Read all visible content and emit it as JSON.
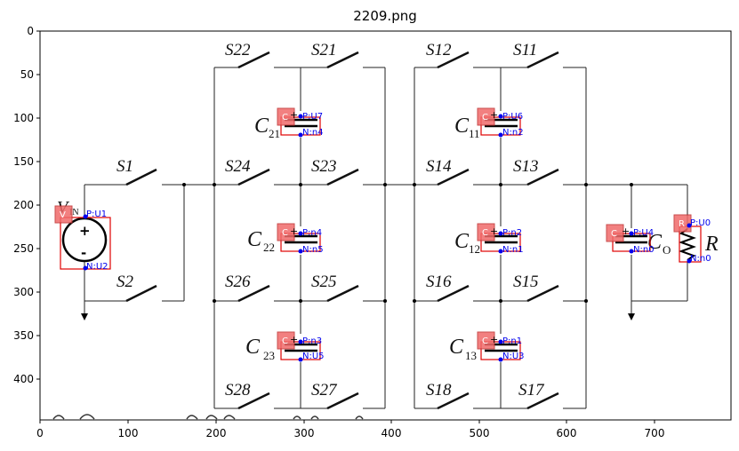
{
  "title": "2209.png",
  "axes": {
    "x_ticks": [
      "0",
      "100",
      "200",
      "300",
      "400",
      "500",
      "600",
      "700"
    ],
    "y_ticks": [
      "0",
      "50",
      "100",
      "150",
      "200",
      "250",
      "300",
      "350",
      "400"
    ]
  },
  "source": {
    "label": "V",
    "sub": "IN",
    "plus": "+",
    "minus": "-",
    "tag": "V",
    "pos_pin": "P:U1",
    "neg_pin": "N:U2"
  },
  "switches": {
    "s1": "S1",
    "s2": "S2",
    "s22": "S22",
    "s21": "S21",
    "s24": "S24",
    "s23": "S23",
    "s26": "S26",
    "s25": "S25",
    "s28": "S28",
    "s27": "S27",
    "s12": "S12",
    "s11": "S11",
    "s14": "S14",
    "s13": "S13",
    "s16": "S16",
    "s15": "S15",
    "s18": "S18",
    "s17": "S17"
  },
  "capacitors": {
    "c21": {
      "label": "C",
      "sub": "21",
      "tag": "C",
      "pos_pin": "P:U7",
      "neg_pin": "N:n4"
    },
    "c22": {
      "label": "C",
      "sub": "22",
      "tag": "C",
      "pos_pin": "P:n4",
      "neg_pin": "N:n5"
    },
    "c23": {
      "label": "C",
      "sub": "23",
      "tag": "C",
      "pos_pin": "P:n3",
      "neg_pin": "N:U5"
    },
    "c11": {
      "label": "C",
      "sub": "11",
      "tag": "C",
      "pos_pin": "P:U6",
      "neg_pin": "N:n2"
    },
    "c12": {
      "label": "C",
      "sub": "12",
      "tag": "C",
      "pos_pin": "P:n2",
      "neg_pin": "N:n1"
    },
    "c13": {
      "label": "C",
      "sub": "13",
      "tag": "C",
      "pos_pin": "P:n1",
      "neg_pin": "N:U3"
    },
    "co": {
      "label": "C",
      "sub": "O",
      "tag": "C",
      "pos_pin": "P:U4",
      "neg_pin": "N:n0"
    }
  },
  "resistor": {
    "label": "R",
    "tag": "R",
    "pos_pin": "P:U0",
    "neg_pin": "N:n0"
  },
  "colors": {
    "annotation": "#0000ee",
    "box": "#e00000",
    "tag_fill": "#f06a6a"
  }
}
